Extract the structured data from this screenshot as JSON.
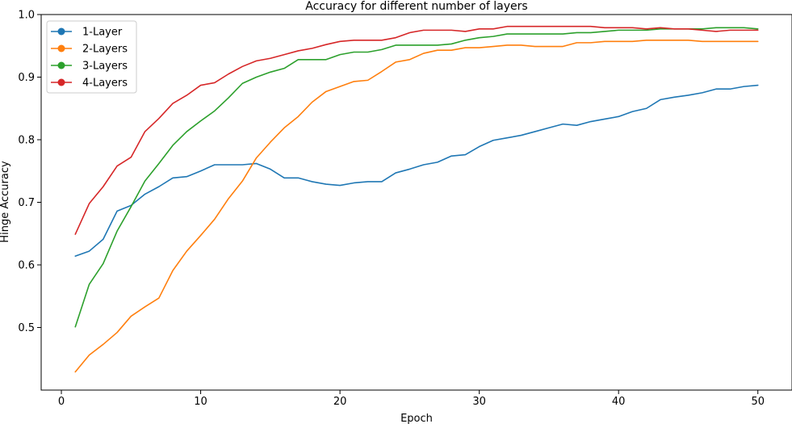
{
  "chart_data": {
    "type": "line",
    "title": "Accuracy for different number of layers",
    "xlabel": "Epoch",
    "ylabel": "Hinge Accuracy",
    "xlim": [
      -1.45,
      52.45
    ],
    "ylim": [
      0.4,
      1.0
    ],
    "xticks": [
      0,
      10,
      20,
      30,
      40,
      50
    ],
    "yticks": [
      0.5,
      0.6,
      0.7,
      0.8,
      0.9,
      1.0
    ],
    "grid": false,
    "legend_position": "top-left",
    "x": [
      1,
      2,
      3,
      4,
      5,
      6,
      7,
      8,
      9,
      10,
      11,
      12,
      13,
      14,
      15,
      16,
      17,
      18,
      19,
      20,
      21,
      22,
      23,
      24,
      25,
      26,
      27,
      28,
      29,
      30,
      31,
      32,
      33,
      34,
      35,
      36,
      37,
      38,
      39,
      40,
      41,
      42,
      43,
      44,
      45,
      46,
      47,
      48,
      49,
      50
    ],
    "series": [
      {
        "name": "1-Layer",
        "color": "#1f77b4",
        "values": [
          0.614,
          0.622,
          0.641,
          0.686,
          0.695,
          0.713,
          0.725,
          0.739,
          0.741,
          0.75,
          0.76,
          0.76,
          0.76,
          0.762,
          0.753,
          0.739,
          0.739,
          0.733,
          0.729,
          0.727,
          0.731,
          0.733,
          0.733,
          0.747,
          0.753,
          0.76,
          0.764,
          0.774,
          0.776,
          0.789,
          0.799,
          0.803,
          0.807,
          0.813,
          0.819,
          0.825,
          0.823,
          0.829,
          0.833,
          0.837,
          0.845,
          0.85,
          0.864,
          0.868,
          0.871,
          0.875,
          0.881,
          0.881,
          0.885,
          0.887
        ]
      },
      {
        "name": "2-Layers",
        "color": "#ff7f0e",
        "values": [
          0.429,
          0.456,
          0.473,
          0.492,
          0.518,
          0.533,
          0.547,
          0.591,
          0.622,
          0.647,
          0.673,
          0.706,
          0.734,
          0.771,
          0.796,
          0.819,
          0.837,
          0.86,
          0.877,
          0.885,
          0.893,
          0.895,
          0.909,
          0.924,
          0.928,
          0.938,
          0.943,
          0.943,
          0.947,
          0.947,
          0.949,
          0.951,
          0.951,
          0.949,
          0.949,
          0.949,
          0.955,
          0.955,
          0.957,
          0.957,
          0.957,
          0.959,
          0.959,
          0.959,
          0.959,
          0.957,
          0.957,
          0.957,
          0.957,
          0.957
        ]
      },
      {
        "name": "3-Layers",
        "color": "#2ca02c",
        "values": [
          0.501,
          0.569,
          0.602,
          0.654,
          0.693,
          0.734,
          0.762,
          0.791,
          0.813,
          0.83,
          0.846,
          0.867,
          0.89,
          0.9,
          0.908,
          0.914,
          0.928,
          0.928,
          0.928,
          0.936,
          0.94,
          0.94,
          0.944,
          0.951,
          0.951,
          0.951,
          0.951,
          0.953,
          0.959,
          0.963,
          0.965,
          0.969,
          0.969,
          0.969,
          0.969,
          0.969,
          0.971,
          0.971,
          0.973,
          0.975,
          0.975,
          0.975,
          0.977,
          0.977,
          0.977,
          0.977,
          0.979,
          0.979,
          0.979,
          0.977
        ]
      },
      {
        "name": "4-Layers",
        "color": "#d62728",
        "values": [
          0.649,
          0.698,
          0.725,
          0.758,
          0.772,
          0.813,
          0.834,
          0.858,
          0.871,
          0.887,
          0.891,
          0.905,
          0.917,
          0.926,
          0.93,
          0.936,
          0.942,
          0.946,
          0.952,
          0.957,
          0.959,
          0.959,
          0.959,
          0.963,
          0.971,
          0.975,
          0.975,
          0.975,
          0.973,
          0.977,
          0.977,
          0.981,
          0.981,
          0.981,
          0.981,
          0.981,
          0.981,
          0.981,
          0.979,
          0.979,
          0.979,
          0.977,
          0.979,
          0.977,
          0.977,
          0.975,
          0.973,
          0.975,
          0.975,
          0.975
        ]
      }
    ]
  }
}
